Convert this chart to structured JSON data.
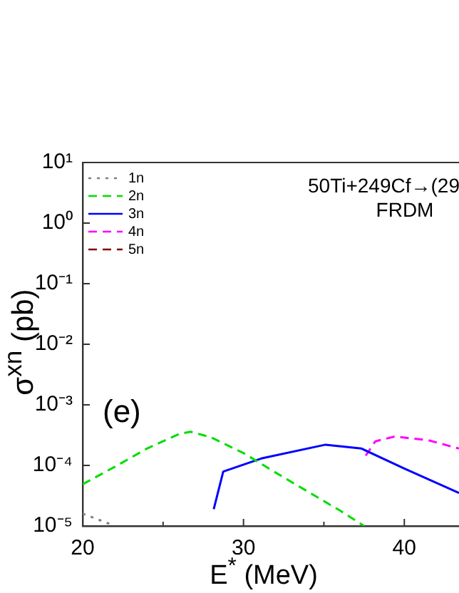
{
  "chart_data": {
    "type": "line",
    "xlabel": "E$^{*}$ (MeV)",
    "ylabel": "σ$^{xn}$ (pb)",
    "xlim": [
      20,
      43.4
    ],
    "xticks": [
      20,
      {
        "value": 25,
        "label": null
      },
      30,
      {
        "value": 35,
        "label": null
      },
      40
    ],
    "ylim": [
      1e-05,
      10
    ],
    "log": "y",
    "yticks": [
      {
        "value": 1e-05,
        "label": "10⁻⁵"
      },
      {
        "value": 0.0001,
        "label": "10⁻⁴"
      },
      {
        "value": 0.001,
        "label": "10⁻³"
      },
      {
        "value": 0.01,
        "label": "10⁻²"
      },
      {
        "value": 0.1,
        "label": "10⁻¹"
      },
      {
        "value": 1,
        "label": "10⁰"
      },
      {
        "value": 10,
        "label": "10¹"
      }
    ],
    "grid": false,
    "legend": "top left",
    "series": [
      {
        "name": "1n",
        "color": "#808080",
        "line_style": "dotted",
        "x": [
          20,
          21.8
        ],
        "values": [
          1.6e-05,
          1.05e-05
        ]
      },
      {
        "name": "2n",
        "color": "#00dd00",
        "line_style": "dashed",
        "x": [
          20,
          22,
          24,
          26,
          26.7,
          28,
          30,
          32,
          34,
          36,
          37.5
        ],
        "values": [
          4.9e-05,
          9.5e-05,
          0.00019,
          0.00033,
          0.00036,
          0.00029,
          0.00016,
          7.6e-05,
          3.7e-05,
          1.8e-05,
          1e-05
        ]
      },
      {
        "name": "3n",
        "color": "#0000ff",
        "line_style": "solid",
        "x": [
          28.15,
          28.74,
          31.1,
          35.1,
          37.33,
          40,
          43.4
        ],
        "values": [
          1.9e-05,
          7.9e-05,
          0.00013,
          0.00022,
          0.00019,
          8.9e-05,
          3.5e-05
        ]
      },
      {
        "name": "4n",
        "color": "#ff00ff",
        "line_style": "dashed",
        "x": [
          37.6,
          38.2,
          39.4,
          41.5,
          43.4
        ],
        "values": [
          0.000145,
          0.00025,
          0.0003,
          0.00026,
          0.00019
        ]
      },
      {
        "name": "5n",
        "color": "#800000",
        "line_style": "dashed"
      }
    ],
    "annotations": [
      "50Ti+249Cf→(29",
      "FRDM",
      "(e)"
    ]
  }
}
